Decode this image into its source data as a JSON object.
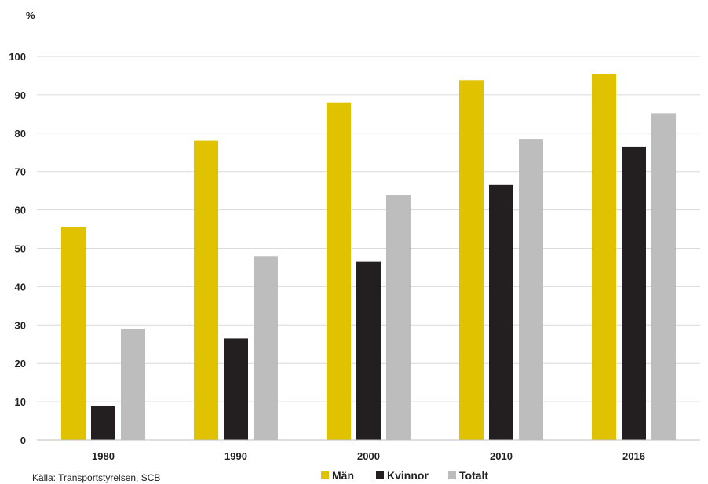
{
  "chart_data": {
    "type": "bar",
    "ylabel": "%",
    "ylim": [
      0,
      100
    ],
    "yticks": [
      0,
      10,
      20,
      30,
      40,
      50,
      60,
      70,
      80,
      90,
      100
    ],
    "categories": [
      "1980",
      "1990",
      "2000",
      "2010",
      "2016"
    ],
    "series": [
      {
        "name": "Män",
        "color": "#e0c200",
        "values": [
          55.5,
          78,
          88,
          93.8,
          95.5
        ]
      },
      {
        "name": "Kvinnor",
        "color": "#231f20",
        "values": [
          9,
          26.5,
          46.5,
          66.5,
          76.5
        ]
      },
      {
        "name": "Totalt",
        "color": "#bdbdbd",
        "values": [
          29,
          48,
          64,
          78.5,
          85.2
        ]
      }
    ],
    "grid": true,
    "legend_position": "bottom"
  },
  "source": "Källa: Transportstyrelsen, SCB"
}
